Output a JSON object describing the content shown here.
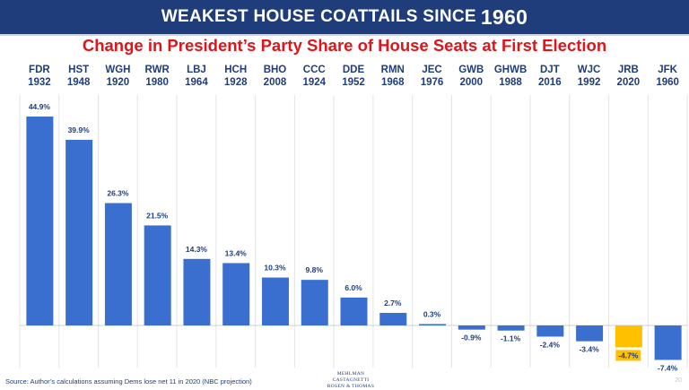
{
  "banner": {
    "title": "WEAKEST HOUSE COATTAILS SINCE",
    "year": "1960"
  },
  "colors": {
    "banner_bg": "#1f3d7a",
    "bar": "#3a6fd0",
    "highlight": "#ffc000",
    "title_red": "#e0141a",
    "label_navy": "#1f3d7a"
  },
  "chart_data": {
    "type": "bar",
    "title": "Change in President’s Party Share of House Seats at First Election",
    "categories": [
      {
        "president": "FDR",
        "year": "1932"
      },
      {
        "president": "HST",
        "year": "1948"
      },
      {
        "president": "WGH",
        "year": "1920"
      },
      {
        "president": "RWR",
        "year": "1980"
      },
      {
        "president": "LBJ",
        "year": "1964"
      },
      {
        "president": "HCH",
        "year": "1928"
      },
      {
        "president": "BHO",
        "year": "2008"
      },
      {
        "president": "CCC",
        "year": "1924"
      },
      {
        "president": "DDE",
        "year": "1952"
      },
      {
        "president": "RMN",
        "year": "1968"
      },
      {
        "president": "JEC",
        "year": "1976"
      },
      {
        "president": "GWB",
        "year": "2000"
      },
      {
        "president": "GHWB",
        "year": "1988"
      },
      {
        "president": "DJT",
        "year": "2016"
      },
      {
        "president": "WJC",
        "year": "1992"
      },
      {
        "president": "JRB",
        "year": "2020"
      },
      {
        "president": "JFK",
        "year": "1960"
      }
    ],
    "values": [
      44.9,
      39.9,
      26.3,
      21.5,
      14.3,
      13.4,
      10.3,
      9.8,
      6.0,
      2.7,
      0.3,
      -0.9,
      -1.1,
      -2.4,
      -3.4,
      -4.7,
      -7.4
    ],
    "value_labels": [
      "44.9%",
      "39.9%",
      "26.3%",
      "21.5%",
      "14.3%",
      "13.4%",
      "10.3%",
      "9.8%",
      "6.0%",
      "2.7%",
      "0.3%",
      "-0.9%",
      "-1.1%",
      "-2.4%",
      "-3.4%",
      "-4.7%",
      "-7.4%"
    ],
    "highlight_index": 15,
    "ylim": [
      -9,
      46
    ],
    "xlabel": "",
    "ylabel": "",
    "grid": "vertical"
  },
  "footer": {
    "source": "Source: Author’s calculations assuming Dems lose net 11 in 2020 (NBC projection)",
    "logo_line1": "MEHLMAN CASTAGNETTI",
    "logo_line2": "ROSEN & THOMAS",
    "page": "20"
  }
}
